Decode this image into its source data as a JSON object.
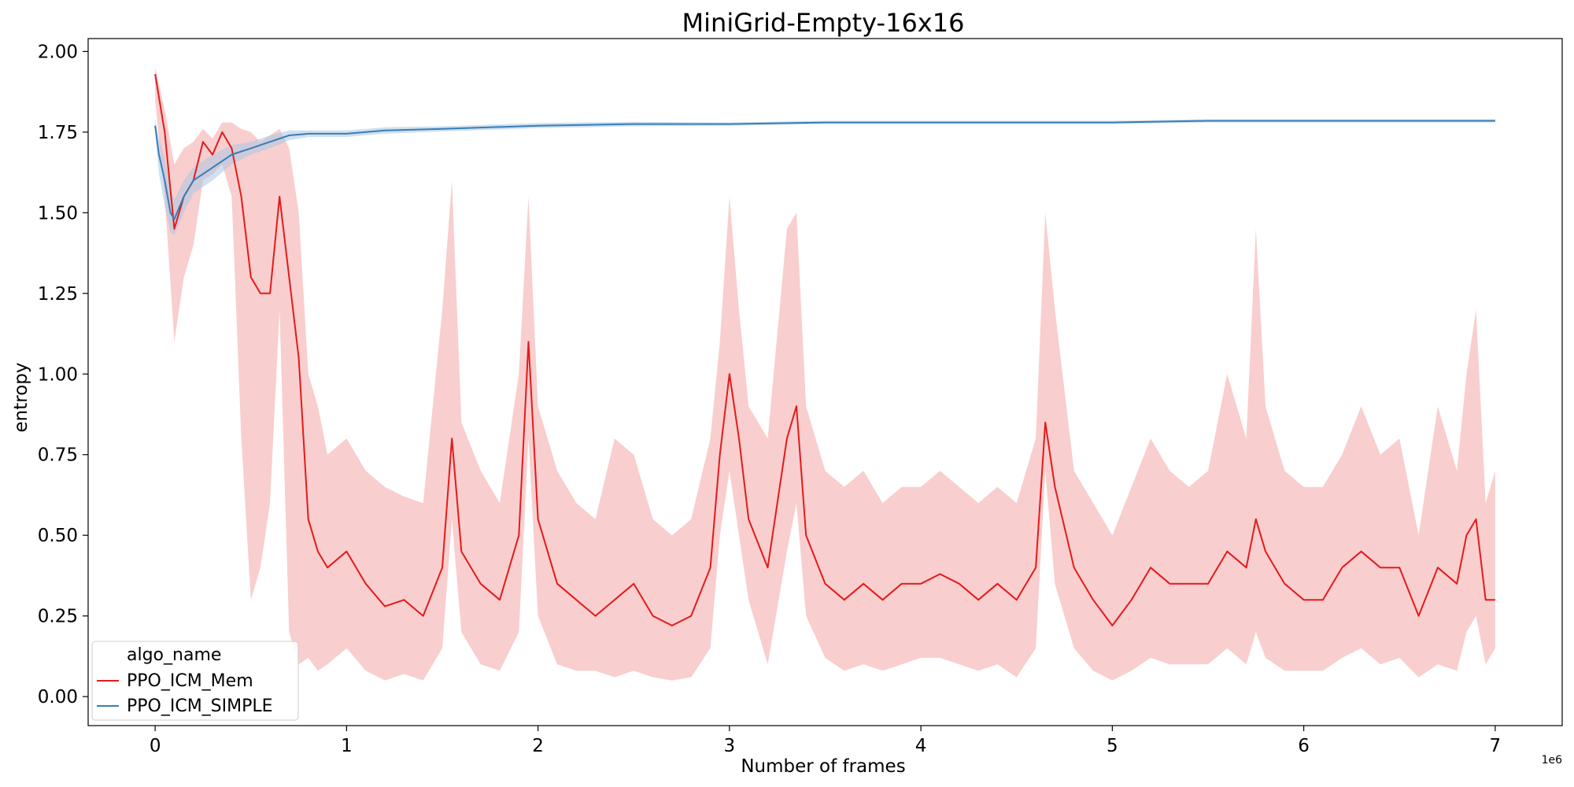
{
  "chart_data": {
    "type": "line",
    "title": "MiniGrid-Empty-16x16",
    "xlabel": "Number of frames",
    "ylabel": "entropy",
    "x_scale_label": "1e6",
    "xlim": [
      -0.35,
      7.35
    ],
    "ylim": [
      -0.09,
      2.04
    ],
    "x_ticks": [
      0,
      1,
      2,
      3,
      4,
      5,
      6,
      7
    ],
    "x_tick_labels": [
      "0",
      "1",
      "2",
      "3",
      "4",
      "5",
      "6",
      "7"
    ],
    "y_ticks": [
      0.0,
      0.25,
      0.5,
      0.75,
      1.0,
      1.25,
      1.5,
      1.75,
      2.0
    ],
    "y_tick_labels": [
      "0.00",
      "0.25",
      "0.50",
      "0.75",
      "1.00",
      "1.25",
      "1.50",
      "1.75",
      "2.00"
    ],
    "legend": {
      "title": "algo_name",
      "placement": "lower-left",
      "entries": [
        "PPO_ICM_Mem",
        "PPO_ICM_SIMPLE"
      ]
    },
    "grid": false,
    "series": [
      {
        "name": "PPO_ICM_Mem",
        "color": "#e41a1c",
        "band_color": "#f4a6a6",
        "x": [
          0.0,
          0.05,
          0.1,
          0.15,
          0.2,
          0.25,
          0.3,
          0.35,
          0.4,
          0.45,
          0.5,
          0.55,
          0.6,
          0.65,
          0.7,
          0.75,
          0.8,
          0.85,
          0.9,
          1.0,
          1.1,
          1.2,
          1.3,
          1.4,
          1.5,
          1.55,
          1.6,
          1.7,
          1.8,
          1.9,
          1.95,
          2.0,
          2.1,
          2.2,
          2.3,
          2.4,
          2.5,
          2.6,
          2.7,
          2.8,
          2.9,
          2.95,
          3.0,
          3.05,
          3.1,
          3.2,
          3.3,
          3.35,
          3.4,
          3.5,
          3.6,
          3.7,
          3.8,
          3.9,
          4.0,
          4.1,
          4.2,
          4.3,
          4.4,
          4.5,
          4.6,
          4.65,
          4.7,
          4.8,
          4.9,
          5.0,
          5.1,
          5.2,
          5.3,
          5.4,
          5.5,
          5.6,
          5.7,
          5.75,
          5.8,
          5.9,
          6.0,
          6.1,
          6.2,
          6.3,
          6.4,
          6.5,
          6.6,
          6.7,
          6.8,
          6.85,
          6.9,
          6.95,
          7.0
        ],
        "values": [
          1.93,
          1.75,
          1.45,
          1.55,
          1.6,
          1.72,
          1.68,
          1.75,
          1.7,
          1.55,
          1.3,
          1.25,
          1.25,
          1.55,
          1.3,
          1.05,
          0.55,
          0.45,
          0.4,
          0.45,
          0.35,
          0.28,
          0.3,
          0.25,
          0.4,
          0.8,
          0.45,
          0.35,
          0.3,
          0.5,
          1.1,
          0.55,
          0.35,
          0.3,
          0.25,
          0.3,
          0.35,
          0.25,
          0.22,
          0.25,
          0.4,
          0.75,
          1.0,
          0.8,
          0.55,
          0.4,
          0.8,
          0.9,
          0.5,
          0.35,
          0.3,
          0.35,
          0.3,
          0.35,
          0.35,
          0.38,
          0.35,
          0.3,
          0.35,
          0.3,
          0.4,
          0.85,
          0.65,
          0.4,
          0.3,
          0.22,
          0.3,
          0.4,
          0.35,
          0.35,
          0.35,
          0.45,
          0.4,
          0.55,
          0.45,
          0.35,
          0.3,
          0.3,
          0.4,
          0.45,
          0.4,
          0.4,
          0.25,
          0.4,
          0.35,
          0.5,
          0.55,
          0.3,
          0.3
        ],
        "lower": [
          1.85,
          1.55,
          1.1,
          1.3,
          1.4,
          1.6,
          1.62,
          1.65,
          1.55,
          0.8,
          0.3,
          0.4,
          0.6,
          1.2,
          0.2,
          0.1,
          0.12,
          0.08,
          0.1,
          0.15,
          0.08,
          0.05,
          0.07,
          0.05,
          0.15,
          0.55,
          0.2,
          0.1,
          0.08,
          0.2,
          0.8,
          0.25,
          0.1,
          0.08,
          0.08,
          0.06,
          0.08,
          0.06,
          0.05,
          0.06,
          0.15,
          0.5,
          0.7,
          0.5,
          0.3,
          0.1,
          0.45,
          0.6,
          0.25,
          0.12,
          0.08,
          0.1,
          0.08,
          0.1,
          0.12,
          0.12,
          0.1,
          0.08,
          0.1,
          0.06,
          0.15,
          0.7,
          0.35,
          0.15,
          0.08,
          0.05,
          0.08,
          0.12,
          0.1,
          0.1,
          0.1,
          0.15,
          0.1,
          0.2,
          0.12,
          0.08,
          0.08,
          0.08,
          0.12,
          0.15,
          0.1,
          0.12,
          0.06,
          0.1,
          0.08,
          0.2,
          0.25,
          0.1,
          0.15
        ],
        "upper": [
          1.95,
          1.82,
          1.65,
          1.7,
          1.72,
          1.76,
          1.73,
          1.78,
          1.78,
          1.76,
          1.75,
          1.72,
          1.74,
          1.76,
          1.7,
          1.5,
          1.0,
          0.9,
          0.75,
          0.8,
          0.7,
          0.65,
          0.62,
          0.6,
          1.2,
          1.6,
          0.85,
          0.7,
          0.6,
          1.0,
          1.55,
          0.9,
          0.7,
          0.6,
          0.55,
          0.8,
          0.75,
          0.55,
          0.5,
          0.55,
          0.8,
          1.1,
          1.55,
          1.2,
          0.9,
          0.8,
          1.45,
          1.5,
          0.9,
          0.7,
          0.65,
          0.7,
          0.6,
          0.65,
          0.65,
          0.7,
          0.65,
          0.6,
          0.65,
          0.6,
          0.8,
          1.5,
          1.2,
          0.7,
          0.6,
          0.5,
          0.65,
          0.8,
          0.7,
          0.65,
          0.7,
          1.0,
          0.8,
          1.45,
          0.9,
          0.7,
          0.65,
          0.65,
          0.75,
          0.9,
          0.75,
          0.8,
          0.5,
          0.9,
          0.7,
          1.0,
          1.2,
          0.6,
          0.7
        ]
      },
      {
        "name": "PPO_ICM_SIMPLE",
        "color": "#377eb8",
        "band_color": "#a9c7e2",
        "x": [
          0.0,
          0.02,
          0.05,
          0.08,
          0.1,
          0.15,
          0.2,
          0.3,
          0.4,
          0.5,
          0.6,
          0.7,
          0.8,
          1.0,
          1.2,
          1.5,
          2.0,
          2.5,
          3.0,
          3.5,
          4.0,
          4.5,
          5.0,
          5.5,
          6.0,
          6.5,
          7.0
        ],
        "values": [
          1.77,
          1.68,
          1.6,
          1.5,
          1.48,
          1.55,
          1.6,
          1.64,
          1.68,
          1.7,
          1.72,
          1.74,
          1.745,
          1.745,
          1.755,
          1.76,
          1.77,
          1.775,
          1.775,
          1.78,
          1.78,
          1.78,
          1.78,
          1.785,
          1.785,
          1.785,
          1.785
        ],
        "lower": [
          1.75,
          1.62,
          1.52,
          1.44,
          1.43,
          1.5,
          1.56,
          1.6,
          1.65,
          1.68,
          1.7,
          1.725,
          1.735,
          1.735,
          1.745,
          1.752,
          1.762,
          1.768,
          1.77,
          1.775,
          1.775,
          1.775,
          1.775,
          1.78,
          1.78,
          1.78,
          1.78
        ],
        "upper": [
          1.79,
          1.73,
          1.67,
          1.57,
          1.54,
          1.6,
          1.64,
          1.68,
          1.71,
          1.72,
          1.74,
          1.755,
          1.755,
          1.755,
          1.765,
          1.768,
          1.778,
          1.782,
          1.78,
          1.785,
          1.785,
          1.785,
          1.785,
          1.79,
          1.79,
          1.79,
          1.79
        ]
      }
    ]
  }
}
